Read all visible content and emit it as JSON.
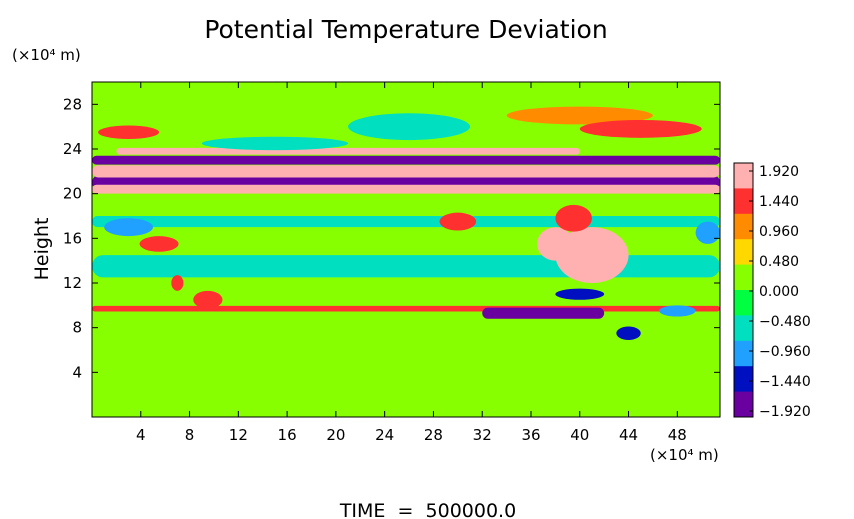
{
  "chart_data": {
    "type": "heatmap",
    "title": "Potential Temperature Deviation",
    "ylabel": "Height",
    "y_unit": "(×10⁴ m)",
    "x_unit": "(×10⁴ m)",
    "footer": "TIME  =  500000.0",
    "xlim": [
      0,
      51.5
    ],
    "ylim": [
      0,
      30
    ],
    "xticks": [
      "4",
      "8",
      "12",
      "16",
      "20",
      "24",
      "28",
      "32",
      "36",
      "40",
      "44",
      "48"
    ],
    "xtick_values": [
      4,
      8,
      12,
      16,
      20,
      24,
      28,
      32,
      36,
      40,
      44,
      48
    ],
    "yticks": [
      "4",
      "8",
      "12",
      "16",
      "20",
      "24",
      "28"
    ],
    "ytick_values": [
      4,
      8,
      12,
      16,
      20,
      24,
      28
    ],
    "colorbar": {
      "labels": [
        "1.920",
        "1.440",
        "0.960",
        "0.480",
        "0.000",
        "−0.480",
        "−0.960",
        "−1.440",
        "−1.920"
      ],
      "values": [
        1.92,
        1.44,
        0.96,
        0.48,
        0.0,
        -0.48,
        -0.96,
        -1.44,
        -1.92
      ],
      "colors": [
        "#ffb0b0",
        "#ff3030",
        "#ff8c00",
        "#ffd800",
        "#88ff00",
        "#00ff40",
        "#00e0c0",
        "#20a0ff",
        "#0010c0",
        "#6a00a0"
      ]
    },
    "background_value": 0.2,
    "features": [
      {
        "kind": "band",
        "x": [
          0,
          51.5
        ],
        "y": 21.0,
        "thick": 1.4,
        "value": -1.92
      },
      {
        "kind": "band",
        "x": [
          0,
          51.5
        ],
        "y": 22.0,
        "thick": 1.1,
        "value": 1.92
      },
      {
        "kind": "band",
        "x": [
          0,
          51.5
        ],
        "y": 20.4,
        "thick": 0.8,
        "value": 1.92
      },
      {
        "kind": "band",
        "x": [
          0,
          51.5
        ],
        "y": 23.0,
        "thick": 0.8,
        "value": -1.92
      },
      {
        "kind": "band",
        "x": [
          2,
          40
        ],
        "y": 23.8,
        "thick": 0.6,
        "value": 1.92
      },
      {
        "kind": "band",
        "x": [
          0,
          51.5
        ],
        "y": 9.7,
        "thick": 0.5,
        "value": 1.44
      },
      {
        "kind": "band",
        "x": [
          32,
          42
        ],
        "y": 9.3,
        "thick": 1.0,
        "value": -1.92
      },
      {
        "kind": "band",
        "x": [
          0,
          51.5
        ],
        "y": 17.5,
        "thick": 1.0,
        "value": -0.48
      },
      {
        "kind": "band",
        "x": [
          0,
          51.5
        ],
        "y": 13.5,
        "thick": 2.0,
        "value": -0.48
      },
      {
        "kind": "blob",
        "x": 41,
        "y": 14.5,
        "rx": 3,
        "ry": 2.5,
        "value": 1.92
      },
      {
        "kind": "blob",
        "x": 38,
        "y": 15.5,
        "rx": 1.5,
        "ry": 1.5,
        "value": 1.92
      },
      {
        "kind": "blob",
        "x": 39.5,
        "y": 17.8,
        "rx": 1.5,
        "ry": 1.2,
        "value": 1.44
      },
      {
        "kind": "blob",
        "x": 30,
        "y": 17.5,
        "rx": 1.5,
        "ry": 0.8,
        "value": 1.44
      },
      {
        "kind": "blob",
        "x": 5.5,
        "y": 15.5,
        "rx": 1.6,
        "ry": 0.7,
        "value": 1.44
      },
      {
        "kind": "blob",
        "x": 9.5,
        "y": 10.5,
        "rx": 1.2,
        "ry": 0.8,
        "value": 1.44
      },
      {
        "kind": "blob",
        "x": 7,
        "y": 12,
        "rx": 0.5,
        "ry": 0.7,
        "value": 1.44
      },
      {
        "kind": "blob",
        "x": 40,
        "y": 11,
        "rx": 2,
        "ry": 0.5,
        "value": -1.44
      },
      {
        "kind": "blob",
        "x": 44,
        "y": 7.5,
        "rx": 1,
        "ry": 0.6,
        "value": -1.44
      },
      {
        "kind": "blob",
        "x": 48,
        "y": 9.5,
        "rx": 1.5,
        "ry": 0.5,
        "value": -0.96
      },
      {
        "kind": "blob",
        "x": 3,
        "y": 17,
        "rx": 2,
        "ry": 0.8,
        "value": -0.96
      },
      {
        "kind": "blob",
        "x": 50.5,
        "y": 16.5,
        "rx": 1,
        "ry": 1,
        "value": -0.96
      },
      {
        "kind": "blob",
        "x": 26,
        "y": 26,
        "rx": 5,
        "ry": 1.2,
        "value": -0.48
      },
      {
        "kind": "blob",
        "x": 40,
        "y": 27,
        "rx": 6,
        "ry": 0.8,
        "value": 0.96
      },
      {
        "kind": "blob",
        "x": 45,
        "y": 25.8,
        "rx": 5,
        "ry": 0.8,
        "value": 1.44
      },
      {
        "kind": "blob",
        "x": 3,
        "y": 25.5,
        "rx": 2.5,
        "ry": 0.6,
        "value": 1.44
      },
      {
        "kind": "blob",
        "x": 15,
        "y": 24.5,
        "rx": 6,
        "ry": 0.6,
        "value": -0.48
      }
    ]
  }
}
